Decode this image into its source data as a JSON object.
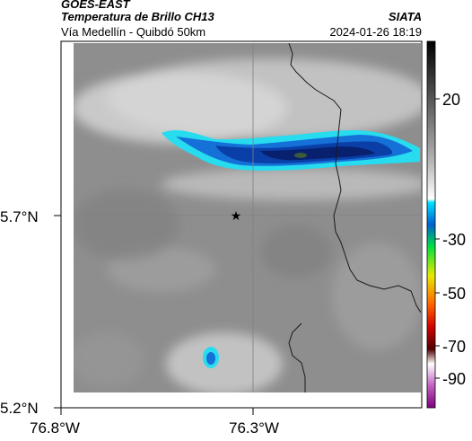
{
  "header": {
    "satellite": "GOES-EAST",
    "product": "Temperatura de Brillo CH13",
    "region": "Vía Medellín - Quibdó 50km",
    "organization": "SIATA",
    "datetime": "2024-01-26 18:19"
  },
  "axes": {
    "x_ticks": [
      "76.8°W",
      "76.3°W"
    ],
    "y_ticks": [
      "5.7°N",
      "5.2°N"
    ]
  },
  "colorbar": {
    "ticks": [
      "20",
      "-30",
      "-50",
      "-70",
      "-90"
    ]
  },
  "colors": {
    "cloud_deep": "#08206e",
    "cloud_mid": "#1570d8",
    "cloud_edge": "#27dcef",
    "land_gray": "#8c8c8c",
    "border": "#1a1a1a"
  }
}
